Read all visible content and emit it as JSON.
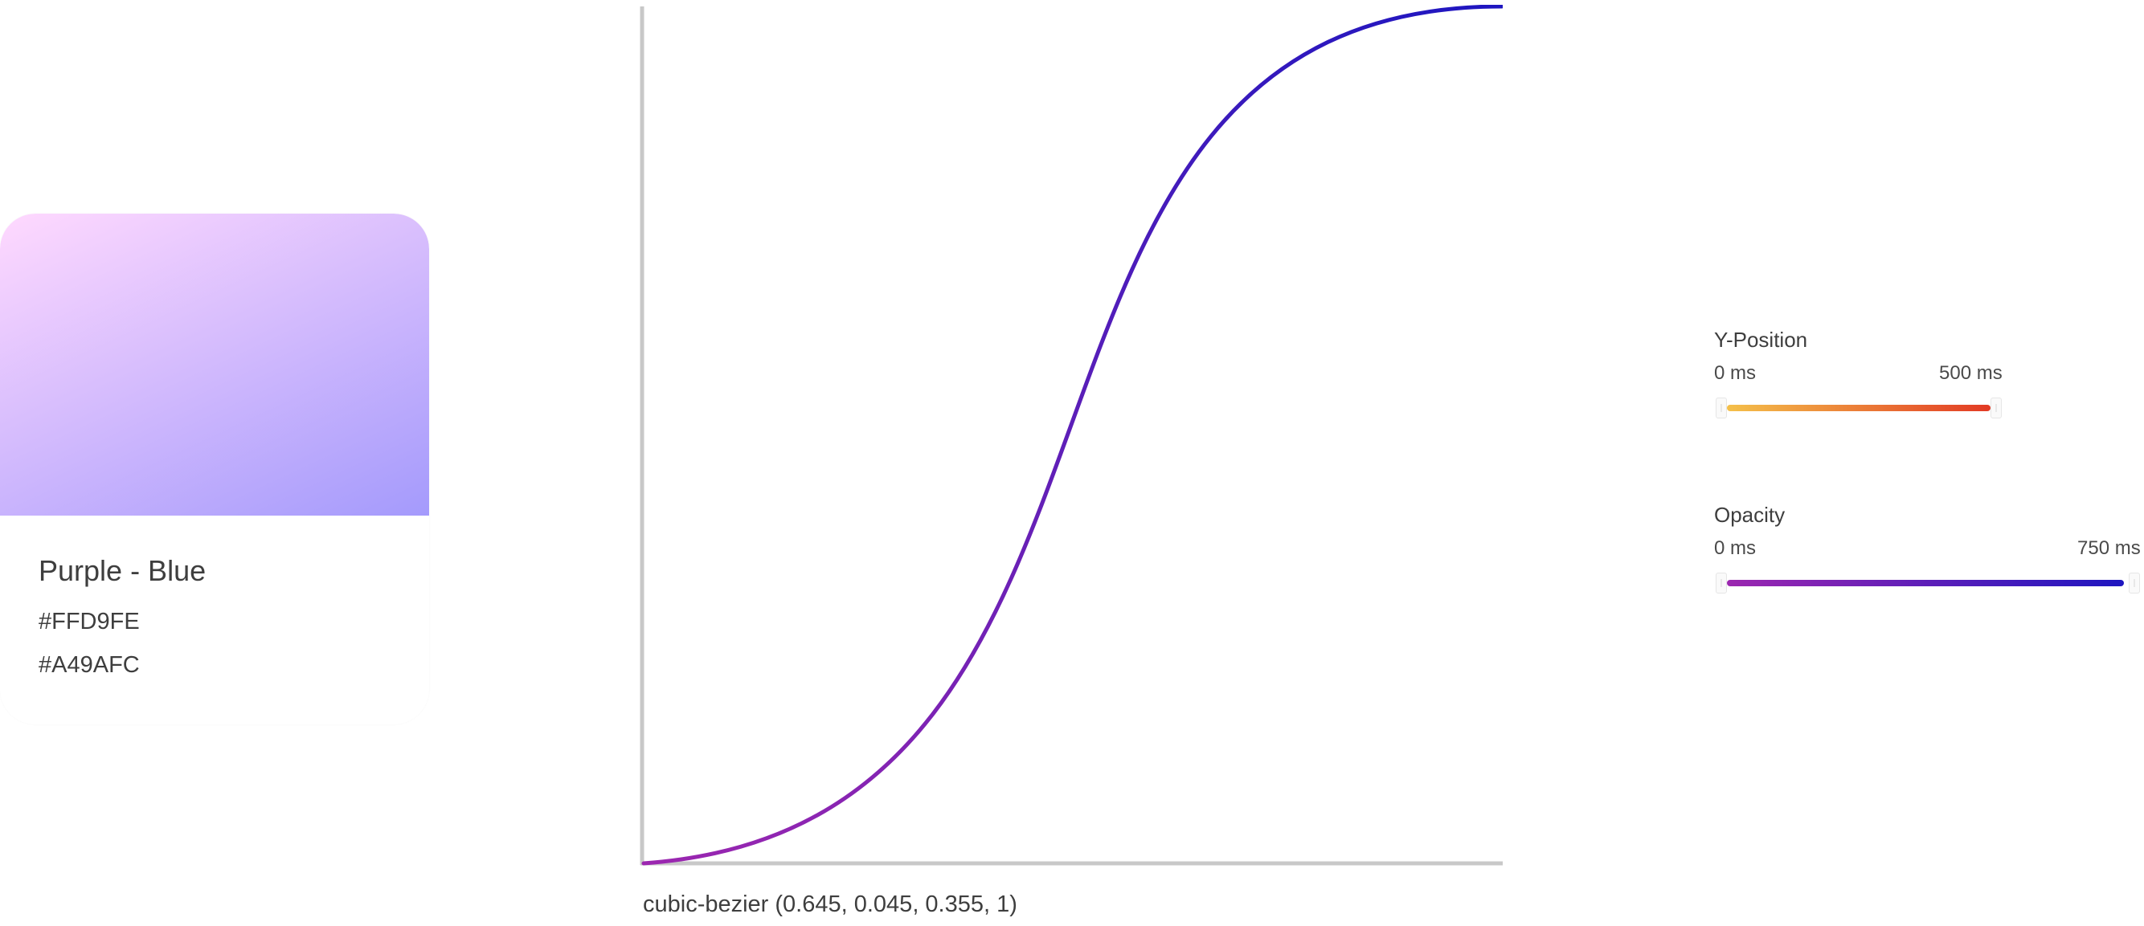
{
  "gradient_card": {
    "name": "Purple - Blue",
    "color_start": "#FFD9FE",
    "color_end": "#A49AFC"
  },
  "easing_curve": {
    "caption": "cubic-bezier (0.645, 0.045, 0.355, 1)",
    "bezier": [
      0.645,
      0.045,
      0.355,
      1
    ],
    "stroke_start": "#9C27B0",
    "stroke_end": "#1E16C0",
    "axis_color": "#C8C8C8"
  },
  "timelines": {
    "y_position": {
      "title": "Y-Position",
      "start_label": "0 ms",
      "end_label": "500 ms",
      "duration_ms": 500,
      "gradient_start": "#F4C04A",
      "gradient_end": "#E23A24"
    },
    "opacity": {
      "title": "Opacity",
      "start_label": "0 ms",
      "end_label": "750 ms",
      "duration_ms": 750,
      "gradient_start": "#9C27B0",
      "gradient_end": "#1E16C0"
    }
  }
}
